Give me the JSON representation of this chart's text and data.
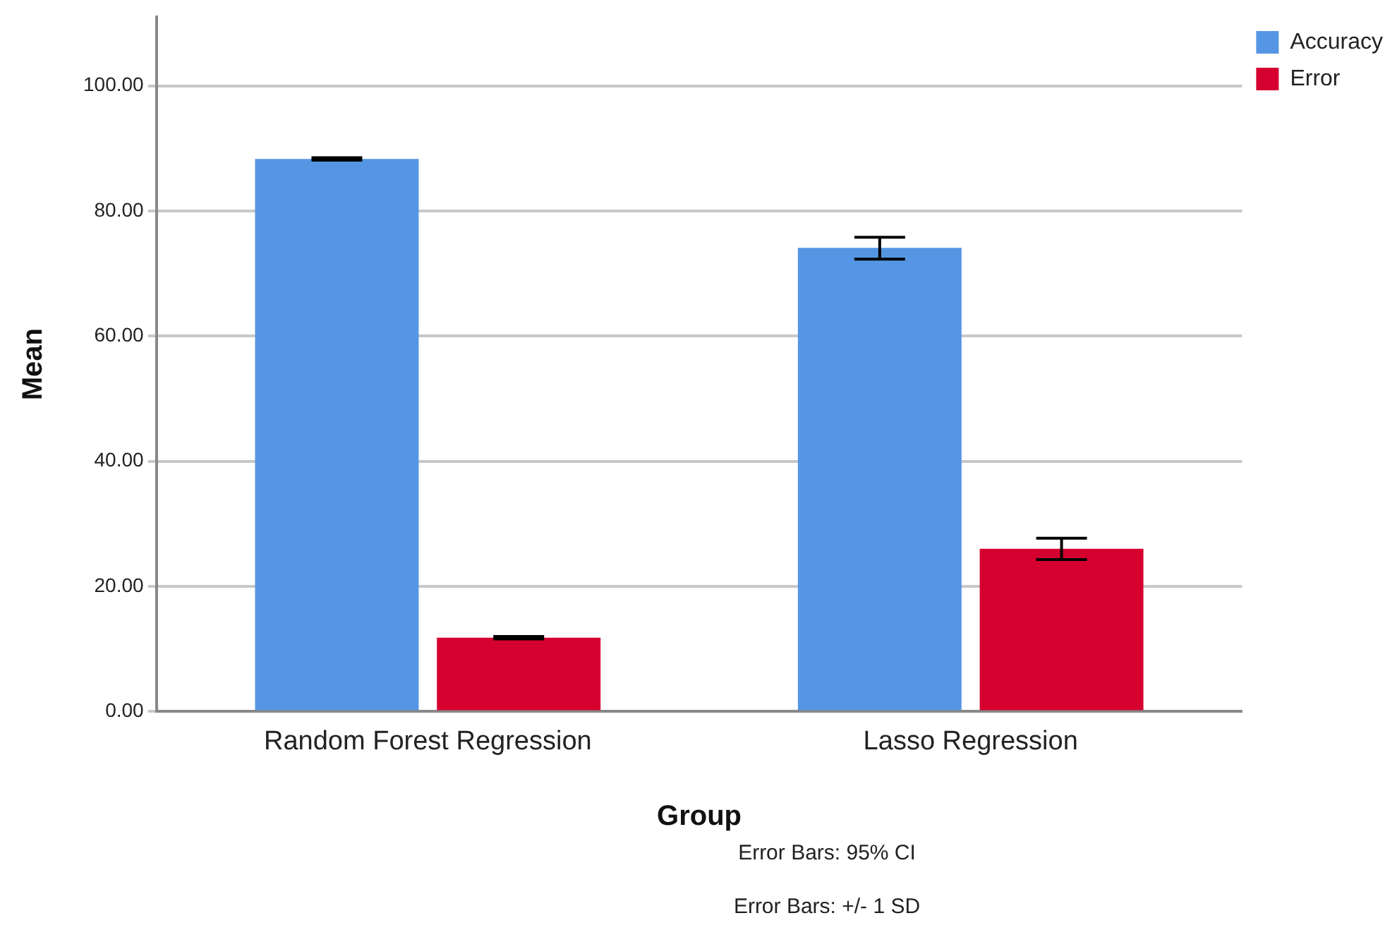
{
  "chart_data": {
    "type": "bar",
    "xlabel": "Group",
    "ylabel": "Mean",
    "categories": [
      "Random Forest Regression",
      "Lasso Regression"
    ],
    "series": [
      {
        "name": "Accuracy",
        "color": "#5596e4",
        "values": [
          88.3,
          74.1
        ],
        "errors": [
          0.2,
          [
            72.3,
            75.8
          ]
        ]
      },
      {
        "name": "Error",
        "color": "#d5002f",
        "values": [
          11.8,
          26.0
        ],
        "errors": [
          0.2,
          [
            24.3,
            27.7
          ]
        ]
      }
    ],
    "ylim": [
      0,
      111
    ],
    "yticks": [
      {
        "value": 0,
        "label": "0.00"
      },
      {
        "value": 20,
        "label": "20.00"
      },
      {
        "value": 40,
        "label": "40.00"
      },
      {
        "value": 60,
        "label": "60.00"
      },
      {
        "value": 80,
        "label": "80.00"
      },
      {
        "value": 100,
        "label": "100.00"
      }
    ],
    "grid": "y",
    "legend": "top right",
    "annotations": [
      "Error Bars: 95% CI",
      "Error Bars: +/- 1 SD"
    ]
  }
}
